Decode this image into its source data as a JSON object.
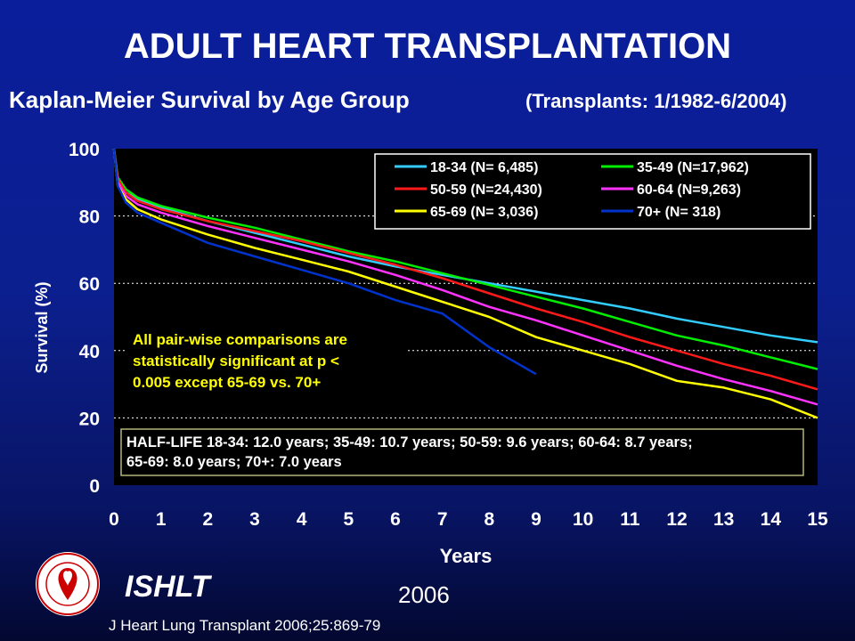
{
  "title": "ADULT HEART TRANSPLANTATION",
  "subtitle": "Kaplan-Meier Survival by Age Group",
  "subtitle_note": "(Transplants: 1/1982-6/2004)",
  "footer": {
    "organization": "ISHLT",
    "year": "2006",
    "citation": "J Heart Lung Transplant 2006;25:869-79",
    "logo_icon": "ishlt-seal-icon"
  },
  "colors": {
    "plot_bg": "#000000",
    "axis_text": "#ffffff",
    "annotation_text": "#ffff00",
    "box_border": "#b5b27a"
  },
  "chart_data": {
    "type": "line",
    "xlabel": "Years",
    "ylabel": "Survival (%)",
    "xlim": [
      0,
      15
    ],
    "ylim": [
      0,
      100
    ],
    "x_ticks": [
      "0",
      "1",
      "2",
      "3",
      "4",
      "5",
      "6",
      "7",
      "8",
      "9",
      "10",
      "11",
      "12",
      "13",
      "14",
      "15"
    ],
    "y_ticks": [
      "0",
      "20",
      "40",
      "60",
      "80",
      "100"
    ],
    "grid": "horizontal dotted",
    "legend_position": "top-right",
    "series": [
      {
        "name": "18-34 (N= 6,485)",
        "color": "#33ccff",
        "points": [
          [
            0,
            100
          ],
          [
            0.08,
            91
          ],
          [
            0.25,
            87
          ],
          [
            0.5,
            85
          ],
          [
            1,
            82.5
          ],
          [
            2,
            78.5
          ],
          [
            3,
            75
          ],
          [
            4,
            71.5
          ],
          [
            5,
            68
          ],
          [
            6,
            65
          ],
          [
            7,
            62.5
          ],
          [
            8,
            60
          ],
          [
            9,
            57.5
          ],
          [
            10,
            55
          ],
          [
            11,
            52.5
          ],
          [
            12,
            49.5
          ],
          [
            13,
            47
          ],
          [
            14,
            44.5
          ],
          [
            15,
            42.5
          ]
        ]
      },
      {
        "name": "35-49 (N=17,962)",
        "color": "#00ee00",
        "points": [
          [
            0,
            100
          ],
          [
            0.08,
            91.5
          ],
          [
            0.25,
            88
          ],
          [
            0.5,
            85.5
          ],
          [
            1,
            83
          ],
          [
            2,
            79.5
          ],
          [
            3,
            76.5
          ],
          [
            4,
            73
          ],
          [
            5,
            69.5
          ],
          [
            6,
            66.5
          ],
          [
            7,
            63
          ],
          [
            8,
            59.5
          ],
          [
            9,
            56
          ],
          [
            10,
            52.5
          ],
          [
            11,
            48.5
          ],
          [
            12,
            44.5
          ],
          [
            13,
            41.5
          ],
          [
            14,
            38
          ],
          [
            15,
            34.5
          ]
        ]
      },
      {
        "name": "50-59 (N=24,430)",
        "color": "#ff1a1a",
        "points": [
          [
            0,
            100
          ],
          [
            0.08,
            91
          ],
          [
            0.25,
            87
          ],
          [
            0.5,
            84.5
          ],
          [
            1,
            82
          ],
          [
            2,
            78.5
          ],
          [
            3,
            75.5
          ],
          [
            4,
            72.5
          ],
          [
            5,
            69
          ],
          [
            6,
            65.5
          ],
          [
            7,
            61.5
          ],
          [
            8,
            57
          ],
          [
            9,
            52.5
          ],
          [
            10,
            48.5
          ],
          [
            11,
            44
          ],
          [
            12,
            40
          ],
          [
            13,
            36
          ],
          [
            14,
            32.5
          ],
          [
            15,
            28.5
          ]
        ]
      },
      {
        "name": "60-64 (N=9,263)",
        "color": "#ff33ff",
        "points": [
          [
            0,
            100
          ],
          [
            0.08,
            90
          ],
          [
            0.25,
            86
          ],
          [
            0.5,
            83.5
          ],
          [
            1,
            81
          ],
          [
            2,
            77
          ],
          [
            3,
            73.5
          ],
          [
            4,
            70
          ],
          [
            5,
            66.5
          ],
          [
            6,
            62.5
          ],
          [
            7,
            58
          ],
          [
            8,
            53
          ],
          [
            9,
            49
          ],
          [
            10,
            44.5
          ],
          [
            11,
            40
          ],
          [
            12,
            35.5
          ],
          [
            13,
            31.5
          ],
          [
            14,
            28
          ],
          [
            15,
            24
          ]
        ]
      },
      {
        "name": "65-69 (N= 3,036)",
        "color": "#ffff00",
        "points": [
          [
            0,
            100
          ],
          [
            0.08,
            89
          ],
          [
            0.25,
            85
          ],
          [
            0.5,
            82
          ],
          [
            1,
            79
          ],
          [
            2,
            74.5
          ],
          [
            3,
            70.5
          ],
          [
            4,
            67
          ],
          [
            5,
            63.5
          ],
          [
            6,
            59
          ],
          [
            7,
            54.5
          ],
          [
            8,
            50
          ],
          [
            9,
            44
          ],
          [
            10,
            40
          ],
          [
            11,
            36
          ],
          [
            12,
            31
          ],
          [
            13,
            29
          ],
          [
            14,
            25.5
          ],
          [
            15,
            20
          ]
        ]
      },
      {
        "name": "70+ (N= 318)",
        "color": "#0033cc",
        "points": [
          [
            0,
            100
          ],
          [
            0.08,
            89
          ],
          [
            0.25,
            84
          ],
          [
            0.5,
            81
          ],
          [
            1,
            78
          ],
          [
            2,
            72
          ],
          [
            3,
            68
          ],
          [
            4,
            64
          ],
          [
            5,
            60
          ],
          [
            6,
            55
          ],
          [
            7,
            51
          ],
          [
            8,
            41
          ],
          [
            9,
            33
          ]
        ]
      }
    ],
    "annotations": {
      "pairwise_lines": [
        "All pair-wise comparisons are",
        "statistically significant at p <",
        "0.005 except 65-69 vs. 70+"
      ],
      "half_life_lines": [
        "HALF-LIFE  18-34: 12.0 years; 35-49: 10.7 years; 50-59: 9.6 years; 60-64: 8.7 years;",
        "65-69: 8.0 years; 70+: 7.0 years"
      ]
    }
  }
}
